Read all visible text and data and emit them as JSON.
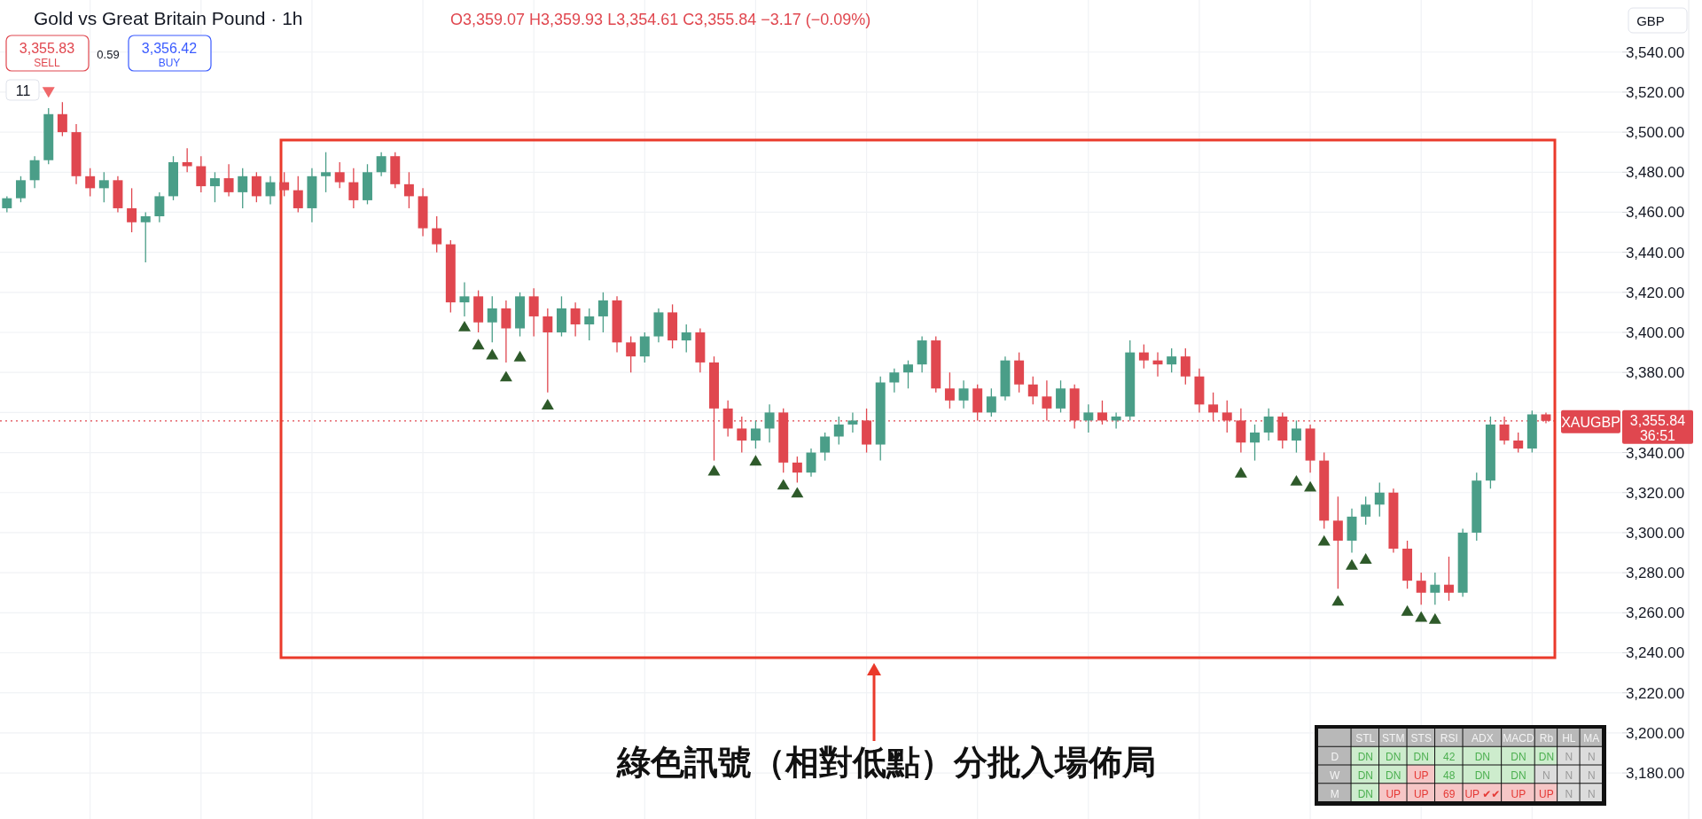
{
  "chart_data": [
    {
      "type": "candlestick",
      "title": "Gold vs Great Britain Pound · 1h",
      "subtitle": "O3,359.07 H3,359.93 L3,354.61 C3,355.84 −3.17 (−0.09%)",
      "categories": [
        null,
        null,
        null,
        null,
        null,
        null,
        null,
        null,
        null,
        null,
        null,
        null,
        null,
        null,
        null,
        null,
        null,
        null,
        null,
        null,
        null,
        null,
        null,
        null,
        null,
        null,
        null,
        null,
        null,
        null,
        null,
        null,
        null,
        null,
        null,
        null,
        null,
        null,
        null,
        null,
        null,
        null,
        null,
        null,
        null,
        null,
        null,
        null,
        null,
        null,
        null,
        null,
        null,
        null,
        null,
        null,
        null,
        null,
        null,
        null,
        null,
        null,
        null,
        null,
        null,
        null,
        null,
        null,
        null,
        null,
        null,
        null,
        null,
        null,
        null,
        null,
        null,
        null,
        null,
        null,
        null,
        null,
        null,
        null,
        null,
        null,
        null,
        null,
        null,
        null,
        null,
        null,
        null,
        null,
        null,
        null,
        null,
        null,
        null,
        null,
        null,
        null,
        null,
        null,
        null,
        null,
        null,
        null,
        null,
        null,
        null,
        null
      ],
      "ohlc": [
        [
          3462,
          3468,
          3460,
          3467
        ],
        [
          3467,
          3478,
          3465,
          3476
        ],
        [
          3476,
          3488,
          3472,
          3486
        ],
        [
          3486,
          3512,
          3484,
          3509
        ],
        [
          3509,
          3515,
          3498,
          3500
        ],
        [
          3500,
          3504,
          3474,
          3478
        ],
        [
          3478,
          3482,
          3468,
          3472
        ],
        [
          3472,
          3480,
          3465,
          3476
        ],
        [
          3476,
          3478,
          3460,
          3462
        ],
        [
          3462,
          3472,
          3450,
          3455
        ],
        [
          3455,
          3460,
          3435,
          3458
        ],
        [
          3458,
          3470,
          3455,
          3468
        ],
        [
          3468,
          3488,
          3466,
          3485
        ],
        [
          3485,
          3492,
          3480,
          3483
        ],
        [
          3483,
          3488,
          3470,
          3473
        ],
        [
          3473,
          3480,
          3465,
          3477
        ],
        [
          3477,
          3484,
          3468,
          3470
        ],
        [
          3470,
          3482,
          3462,
          3478
        ],
        [
          3478,
          3480,
          3465,
          3468
        ],
        [
          3468,
          3478,
          3464,
          3475
        ],
        [
          3475,
          3480,
          3468,
          3471
        ],
        [
          3471,
          3478,
          3460,
          3462
        ],
        [
          3462,
          3482,
          3455,
          3478
        ],
        [
          3478,
          3490,
          3470,
          3480
        ],
        [
          3480,
          3485,
          3472,
          3475
        ],
        [
          3475,
          3482,
          3462,
          3466
        ],
        [
          3466,
          3484,
          3464,
          3480
        ],
        [
          3480,
          3490,
          3478,
          3488
        ],
        [
          3488,
          3490,
          3472,
          3474
        ],
        [
          3474,
          3480,
          3462,
          3468
        ],
        [
          3468,
          3472,
          3448,
          3452
        ],
        [
          3452,
          3458,
          3440,
          3444
        ],
        [
          3444,
          3446,
          3410,
          3415
        ],
        [
          3415,
          3425,
          3408,
          3418
        ],
        [
          3418,
          3421,
          3400,
          3405
        ],
        [
          3405,
          3418,
          3395,
          3412
        ],
        [
          3412,
          3416,
          3385,
          3402
        ],
        [
          3402,
          3420,
          3398,
          3418
        ],
        [
          3418,
          3422,
          3398,
          3408
        ],
        [
          3408,
          3412,
          3370,
          3400
        ],
        [
          3400,
          3418,
          3398,
          3412
        ],
        [
          3412,
          3415,
          3398,
          3404
        ],
        [
          3404,
          3412,
          3396,
          3408
        ],
        [
          3408,
          3420,
          3400,
          3416
        ],
        [
          3416,
          3418,
          3390,
          3395
        ],
        [
          3395,
          3398,
          3380,
          3388
        ],
        [
          3388,
          3400,
          3385,
          3398
        ],
        [
          3398,
          3412,
          3395,
          3410
        ],
        [
          3410,
          3414,
          3392,
          3396
        ],
        [
          3396,
          3404,
          3390,
          3400
        ],
        [
          3400,
          3402,
          3380,
          3385
        ],
        [
          3385,
          3388,
          3336,
          3362
        ],
        [
          3362,
          3366,
          3348,
          3352
        ],
        [
          3352,
          3358,
          3340,
          3346
        ],
        [
          3346,
          3356,
          3342,
          3352
        ],
        [
          3352,
          3364,
          3345,
          3360
        ],
        [
          3360,
          3362,
          3330,
          3335
        ],
        [
          3335,
          3338,
          3325,
          3330
        ],
        [
          3330,
          3342,
          3328,
          3340
        ],
        [
          3340,
          3350,
          3336,
          3348
        ],
        [
          3348,
          3358,
          3344,
          3354
        ],
        [
          3354,
          3360,
          3350,
          3356
        ],
        [
          3356,
          3362,
          3340,
          3344
        ],
        [
          3344,
          3378,
          3336,
          3375
        ],
        [
          3375,
          3382,
          3370,
          3380
        ],
        [
          3380,
          3386,
          3372,
          3384
        ],
        [
          3384,
          3398,
          3380,
          3396
        ],
        [
          3396,
          3398,
          3370,
          3372
        ],
        [
          3372,
          3380,
          3362,
          3366
        ],
        [
          3366,
          3376,
          3362,
          3372
        ],
        [
          3372,
          3374,
          3356,
          3360
        ],
        [
          3360,
          3372,
          3358,
          3368
        ],
        [
          3368,
          3388,
          3366,
          3386
        ],
        [
          3386,
          3390,
          3370,
          3374
        ],
        [
          3374,
          3378,
          3364,
          3368
        ],
        [
          3368,
          3376,
          3356,
          3362
        ],
        [
          3362,
          3376,
          3360,
          3372
        ],
        [
          3372,
          3374,
          3352,
          3356
        ],
        [
          3356,
          3364,
          3350,
          3360
        ],
        [
          3360,
          3366,
          3354,
          3356
        ],
        [
          3356,
          3360,
          3352,
          3358
        ],
        [
          3358,
          3396,
          3356,
          3390
        ],
        [
          3390,
          3394,
          3382,
          3386
        ],
        [
          3386,
          3390,
          3378,
          3384
        ],
        [
          3384,
          3392,
          3380,
          3388
        ],
        [
          3388,
          3392,
          3374,
          3378
        ],
        [
          3378,
          3382,
          3360,
          3364
        ],
        [
          3364,
          3370,
          3356,
          3360
        ],
        [
          3360,
          3366,
          3350,
          3356
        ],
        [
          3356,
          3362,
          3340,
          3345
        ],
        [
          3345,
          3354,
          3336,
          3350
        ],
        [
          3350,
          3362,
          3346,
          3358
        ],
        [
          3358,
          3360,
          3342,
          3346
        ],
        [
          3346,
          3356,
          3340,
          3352
        ],
        [
          3352,
          3354,
          3330,
          3336
        ],
        [
          3336,
          3340,
          3302,
          3306
        ],
        [
          3306,
          3318,
          3272,
          3296
        ],
        [
          3296,
          3312,
          3290,
          3308
        ],
        [
          3308,
          3318,
          3304,
          3314
        ],
        [
          3314,
          3325,
          3308,
          3320
        ],
        [
          3320,
          3322,
          3290,
          3292
        ],
        [
          3292,
          3296,
          3272,
          3276
        ],
        [
          3276,
          3280,
          3264,
          3270
        ],
        [
          3270,
          3280,
          3264,
          3274
        ],
        [
          3274,
          3288,
          3266,
          3270
        ],
        [
          3270,
          3302,
          3268,
          3300
        ],
        [
          3300,
          3330,
          3296,
          3326
        ],
        [
          3326,
          3358,
          3322,
          3354
        ],
        [
          3354,
          3358,
          3344,
          3346
        ],
        [
          3346,
          3350,
          3340,
          3342
        ],
        [
          3342,
          3361,
          3340,
          3359.07
        ],
        [
          3359.07,
          3359.93,
          3354.61,
          3355.84
        ]
      ],
      "colors": [
        "#4a9e88",
        "#4a9e88",
        "#4a9e88",
        "#4a9e88",
        "#e0474f",
        "#e0474f",
        "#e0474f",
        "#4a9e88",
        "#e0474f",
        "#e0474f",
        "#4a9e88",
        "#4a9e88",
        "#4a9e88",
        "#e0474f",
        "#e0474f",
        "#4a9e88",
        "#e0474f",
        "#4a9e88",
        "#e0474f",
        "#4a9e88",
        "#e0474f",
        "#e0474f",
        "#4a9e88",
        "#4a9e88",
        "#e0474f",
        "#e0474f",
        "#4a9e88",
        "#4a9e88",
        "#e0474f",
        "#e0474f",
        "#e0474f",
        "#e0474f",
        "#e0474f",
        "#4a9e88",
        "#e0474f",
        "#4a9e88",
        "#e0474f",
        "#4a9e88",
        "#e0474f",
        "#e0474f",
        "#4a9e88",
        "#e0474f",
        "#4a9e88",
        "#4a9e88",
        "#e0474f",
        "#e0474f",
        "#4a9e88",
        "#4a9e88",
        "#e0474f",
        "#4a9e88",
        "#e0474f",
        "#e0474f",
        "#e0474f",
        "#e0474f",
        "#4a9e88",
        "#4a9e88",
        "#e0474f",
        "#e0474f",
        "#4a9e88",
        "#4a9e88",
        "#4a9e88",
        "#4a9e88",
        "#e0474f",
        "#4a9e88",
        "#4a9e88",
        "#4a9e88",
        "#4a9e88",
        "#e0474f",
        "#e0474f",
        "#4a9e88",
        "#e0474f",
        "#4a9e88",
        "#4a9e88",
        "#e0474f",
        "#e0474f",
        "#e0474f",
        "#4a9e88",
        "#e0474f",
        "#4a9e88",
        "#e0474f",
        "#4a9e88",
        "#4a9e88",
        "#e0474f",
        "#e0474f",
        "#4a9e88",
        "#e0474f",
        "#e0474f",
        "#e0474f",
        "#e0474f",
        "#e0474f",
        "#4a9e88",
        "#4a9e88",
        "#e0474f",
        "#4a9e88",
        "#e0474f",
        "#e0474f",
        "#e0474f",
        "#4a9e88",
        "#4a9e88",
        "#4a9e88",
        "#e0474f",
        "#e0474f",
        "#e0474f",
        "#4a9e88",
        "#e0474f",
        "#4a9e88",
        "#4a9e88",
        "#4a9e88",
        "#e0474f",
        "#e0474f",
        "#4a9e88",
        "#e0474f"
      ],
      "series": [
        {
          "type": "scatter",
          "marker": "triangle",
          "color": "#2e5a2a",
          "values": [
            null,
            null,
            null,
            null,
            null,
            null,
            null,
            null,
            null,
            null,
            null,
            null,
            null,
            null,
            null,
            null,
            null,
            null,
            null,
            null,
            null,
            null,
            null,
            null,
            null,
            null,
            null,
            null,
            null,
            null,
            null,
            null,
            null,
            3403,
            3394,
            3389,
            3378,
            3388,
            null,
            3364,
            null,
            null,
            null,
            null,
            null,
            null,
            null,
            null,
            null,
            null,
            null,
            3331,
            null,
            null,
            3336,
            null,
            3324,
            3320,
            null,
            null,
            null,
            null,
            null,
            null,
            null,
            null,
            null,
            null,
            null,
            null,
            null,
            null,
            null,
            null,
            null,
            null,
            null,
            null,
            null,
            null,
            null,
            null,
            null,
            null,
            null,
            null,
            null,
            null,
            null,
            3330,
            null,
            null,
            null,
            3326,
            3323,
            3296,
            3266,
            3284,
            3287,
            null,
            null,
            3261,
            3258,
            3257,
            null,
            null,
            null,
            null,
            null,
            null,
            null,
            null
          ]
        },
        {
          "type": "scatter",
          "marker": "triangle",
          "color": "#f0686a",
          "values": [
            null,
            null,
            null,
            3520,
            null,
            null,
            null,
            null,
            null,
            null,
            null,
            null,
            null,
            null,
            null,
            null,
            null,
            null,
            null,
            null,
            null,
            null,
            null,
            null,
            null,
            null,
            null,
            null,
            null,
            null,
            null,
            null,
            null,
            null,
            null,
            null,
            null,
            null,
            null,
            null,
            null,
            null,
            null,
            null,
            null,
            null,
            null,
            null,
            null,
            null,
            null,
            null,
            null,
            null,
            null,
            null,
            null,
            null,
            null,
            null,
            null,
            null,
            null,
            null,
            null,
            null,
            null,
            null,
            null,
            null,
            null,
            null,
            null,
            null,
            null,
            null,
            null,
            null,
            null,
            null,
            null,
            null,
            null,
            null,
            null,
            null,
            null,
            null,
            null,
            null,
            null,
            null,
            null,
            null,
            null,
            null,
            null,
            null,
            null,
            null,
            null,
            null,
            null,
            null,
            null,
            null,
            null,
            null,
            null,
            null,
            null,
            null
          ]
        }
      ],
      "ylim": [
        3157,
        3566
      ],
      "yticks": [
        {
          "value": 3180,
          "label": "3,180.00"
        },
        {
          "value": 3200,
          "label": "3,200.00"
        },
        {
          "value": 3220,
          "label": "3,220.00"
        },
        {
          "value": 3240,
          "label": "3,240.00"
        },
        {
          "value": 3260,
          "label": "3,260.00"
        },
        {
          "value": 3280,
          "label": "3,280.00"
        },
        {
          "value": 3300,
          "label": "3,300.00"
        },
        {
          "value": 3320,
          "label": "3,320.00"
        },
        {
          "value": 3340,
          "label": "3,340.00"
        },
        {
          "value": 3360,
          "label": null
        },
        {
          "value": 3380,
          "label": "3,380.00"
        },
        {
          "value": 3400,
          "label": "3,400.00"
        },
        {
          "value": 3420,
          "label": "3,420.00"
        },
        {
          "value": 3440,
          "label": "3,440.00"
        },
        {
          "value": 3460,
          "label": "3,460.00"
        },
        {
          "value": 3480,
          "label": "3,480.00"
        },
        {
          "value": 3500,
          "label": "3,500.00"
        },
        {
          "value": 3520,
          "label": "3,520.00"
        },
        {
          "value": 3540,
          "label": "3,540.00"
        }
      ],
      "tick_labels": "y",
      "grid": true,
      "ref_lines": [
        {
          "axis": "y",
          "value": 3355.84,
          "label": "XAUGBP",
          "color": "#e0474f",
          "line_style": "dotted"
        }
      ],
      "annotations": [
        "3,355.83",
        "SELL",
        "0.59",
        "3,356.42",
        "BUY",
        "11",
        "GBP",
        "3,355.84",
        "36:51",
        "綠色訊號（相對低點）分批入場佈局"
      ]
    },
    {
      "type": "other",
      "categories": [
        null,
        "STL",
        "STM",
        "STS",
        "RSI",
        "ADX",
        "MACD",
        "Rb",
        "HL",
        "MA"
      ],
      "y_categories": [
        "D",
        "W",
        "M"
      ],
      "cell_labels": [
        [
          "DN",
          "DN",
          "DN",
          "42",
          "DN",
          "DN",
          "DN",
          "N",
          "N"
        ],
        [
          "DN",
          "DN",
          "UP",
          "48",
          "DN",
          "DN",
          "N",
          "N",
          "N"
        ],
        [
          "DN",
          "UP",
          "UP",
          "69",
          "UP ✔✔",
          "UP",
          "UP",
          "N",
          "N"
        ]
      ],
      "colors": [
        [
          "#cdeccd",
          "#cdeccd",
          "#cdeccd",
          "#cdeccd",
          "#cdeccd",
          "#cdeccd",
          "#cdeccd",
          "#dcdcdc",
          "#dcdcdc"
        ],
        [
          "#cdeccd",
          "#cdeccd",
          "#f6c6c6",
          "#cdeccd",
          "#cdeccd",
          "#cdeccd",
          "#dcdcdc",
          "#dcdcdc",
          "#dcdcdc"
        ],
        [
          "#cdeccd",
          "#f6c6c6",
          "#f6c6c6",
          "#f6c6c6",
          "#f6c6c6",
          "#f6c6c6",
          "#f6c6c6",
          "#dcdcdc",
          "#dcdcdc"
        ]
      ]
    }
  ]
}
